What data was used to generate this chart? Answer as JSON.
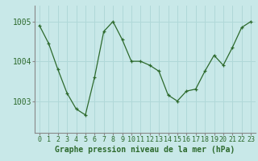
{
  "x": [
    0,
    1,
    2,
    3,
    4,
    5,
    6,
    7,
    8,
    9,
    10,
    11,
    12,
    13,
    14,
    15,
    16,
    17,
    18,
    19,
    20,
    21,
    22,
    23
  ],
  "y": [
    1004.9,
    1004.45,
    1003.8,
    1003.2,
    1002.8,
    1002.65,
    1003.6,
    1004.75,
    1005.0,
    1004.55,
    1004.0,
    1004.0,
    1003.9,
    1003.75,
    1003.15,
    1003.0,
    1003.25,
    1003.3,
    1003.75,
    1004.15,
    1003.9,
    1004.35,
    1004.85,
    1005.0
  ],
  "line_color": "#2d6a2d",
  "marker": "+",
  "bg_color": "#c8e8e8",
  "grid_color": "#b0d8d8",
  "bottom_bar_color": "#3a7a3a",
  "ylabel_left_labels": [
    "1003",
    "1004",
    "1005"
  ],
  "ylabel_left_values": [
    1003,
    1004,
    1005
  ],
  "ylim": [
    1002.2,
    1005.4
  ],
  "xlim": [
    -0.5,
    23.5
  ],
  "xlabel_label": "Graphe pression niveau de la mer (hPa)",
  "xlabel_fontsize": 7,
  "tick_fontsize": 6,
  "ytick_fontsize": 7
}
